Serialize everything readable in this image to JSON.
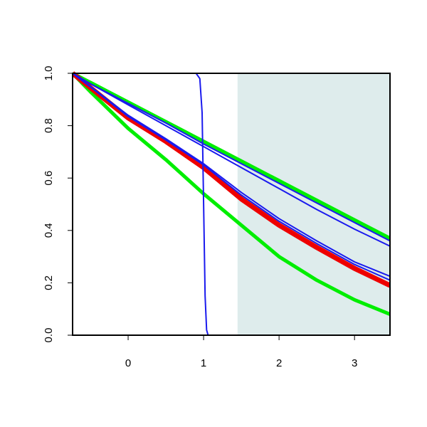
{
  "chart_data": {
    "type": "line",
    "xlim": [
      -0.736,
      3.47
    ],
    "ylim": [
      0,
      1
    ],
    "xticks": [
      0,
      1,
      2,
      3
    ],
    "yticks": [
      {
        "value": 0,
        "label": "0.0"
      },
      0.2,
      0.4,
      0.6,
      0.8,
      {
        "value": 1,
        "label": "1.0"
      }
    ],
    "shade": [
      1.45,
      3.47
    ],
    "shade_color": "#deecec",
    "series": [
      {
        "color": "#00ee00",
        "width": 5,
        "x": [
          -0.736,
          -0.5,
          0,
          0.5,
          1,
          1.5,
          2,
          2.5,
          3,
          3.47
        ],
        "values": [
          1,
          0.965,
          0.89,
          0.815,
          0.74,
          0.665,
          0.59,
          0.515,
          0.44,
          0.37
        ]
      },
      {
        "color": "#00ee00",
        "width": 5,
        "x": [
          -0.736,
          -0.5,
          0,
          0.5,
          1,
          1.5,
          2,
          2.5,
          3,
          3.47
        ],
        "values": [
          1,
          0.93,
          0.79,
          0.67,
          0.54,
          0.42,
          0.3,
          0.21,
          0.135,
          0.08
        ]
      },
      {
        "color": "#ee0000",
        "width": 7,
        "x": [
          -0.736,
          -0.5,
          0,
          0.5,
          1,
          1.5,
          2,
          2.5,
          3,
          3.47
        ],
        "values": [
          1,
          0.945,
          0.83,
          0.74,
          0.64,
          0.52,
          0.42,
          0.335,
          0.255,
          0.19
        ]
      },
      {
        "color": "#1a1aee",
        "width": 2,
        "x": [
          -0.736,
          -0.5,
          0,
          0.5,
          1,
          1.5,
          2,
          2.5,
          3,
          3.47
        ],
        "values": [
          1,
          0.96,
          0.885,
          0.81,
          0.73,
          0.655,
          0.58,
          0.505,
          0.43,
          0.36
        ]
      },
      {
        "color": "#1a1aee",
        "width": 2,
        "x": [
          -0.736,
          -0.5,
          0,
          0.5,
          1,
          1.5,
          2,
          2.5,
          3,
          3.47
        ],
        "values": [
          1,
          0.96,
          0.88,
          0.8,
          0.72,
          0.64,
          0.56,
          0.48,
          0.405,
          0.34
        ]
      },
      {
        "color": "#1a1aee",
        "width": 2,
        "x": [
          -0.736,
          -0.5,
          0,
          0.5,
          1,
          1.5,
          2,
          2.5,
          3,
          3.47
        ],
        "values": [
          1,
          0.95,
          0.84,
          0.75,
          0.655,
          0.545,
          0.445,
          0.36,
          0.28,
          0.225
        ]
      },
      {
        "color": "#1a1aee",
        "width": 2,
        "x": [
          -0.736,
          -0.5,
          0,
          0.5,
          1,
          1.5,
          2,
          2.5,
          3,
          3.47
        ],
        "values": [
          1,
          0.948,
          0.835,
          0.745,
          0.65,
          0.535,
          0.435,
          0.35,
          0.27,
          0.21
        ]
      },
      {
        "color": "#1a1aee",
        "width": 2,
        "x": [
          -0.736,
          0.9,
          0.95,
          0.98,
          1.0,
          1.02,
          1.04,
          1.06,
          3.47
        ],
        "values": [
          1,
          1,
          0.98,
          0.85,
          0.5,
          0.15,
          0.02,
          0,
          0
        ]
      }
    ]
  }
}
